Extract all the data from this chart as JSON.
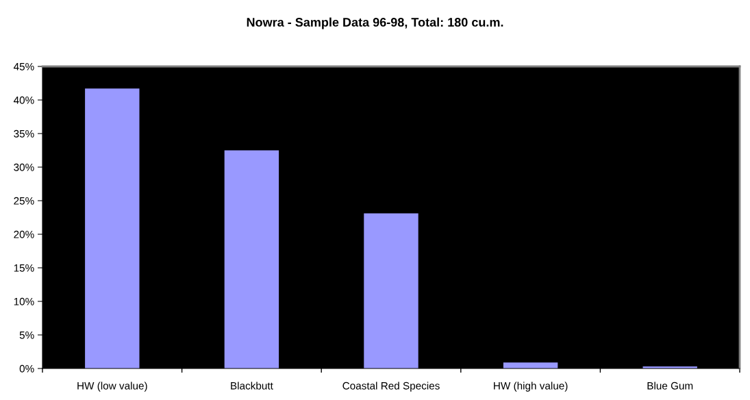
{
  "chart_data": {
    "type": "bar",
    "title": "Nowra - Sample Data 96-98, Total: 180 cu.m.",
    "categories": [
      "HW (low value)",
      "Blackbutt",
      "Coastal Red Species",
      "HW (high value)",
      "Blue Gum"
    ],
    "values": [
      41.7,
      32.5,
      23.1,
      0.9,
      0.3
    ],
    "color": "#9999ff",
    "ylim": [
      0,
      45
    ],
    "yticks": [
      {
        "value": 0,
        "label": "0%"
      },
      {
        "value": 5,
        "label": "5%"
      },
      {
        "value": 10,
        "label": "10%"
      },
      {
        "value": 15,
        "label": "15%"
      },
      {
        "value": 20,
        "label": "20%"
      },
      {
        "value": 25,
        "label": "25%"
      },
      {
        "value": 30,
        "label": "30%"
      },
      {
        "value": 35,
        "label": "35%"
      },
      {
        "value": 40,
        "label": "40%"
      },
      {
        "value": 45,
        "label": "45%"
      }
    ],
    "grid": false,
    "legend": false
  }
}
